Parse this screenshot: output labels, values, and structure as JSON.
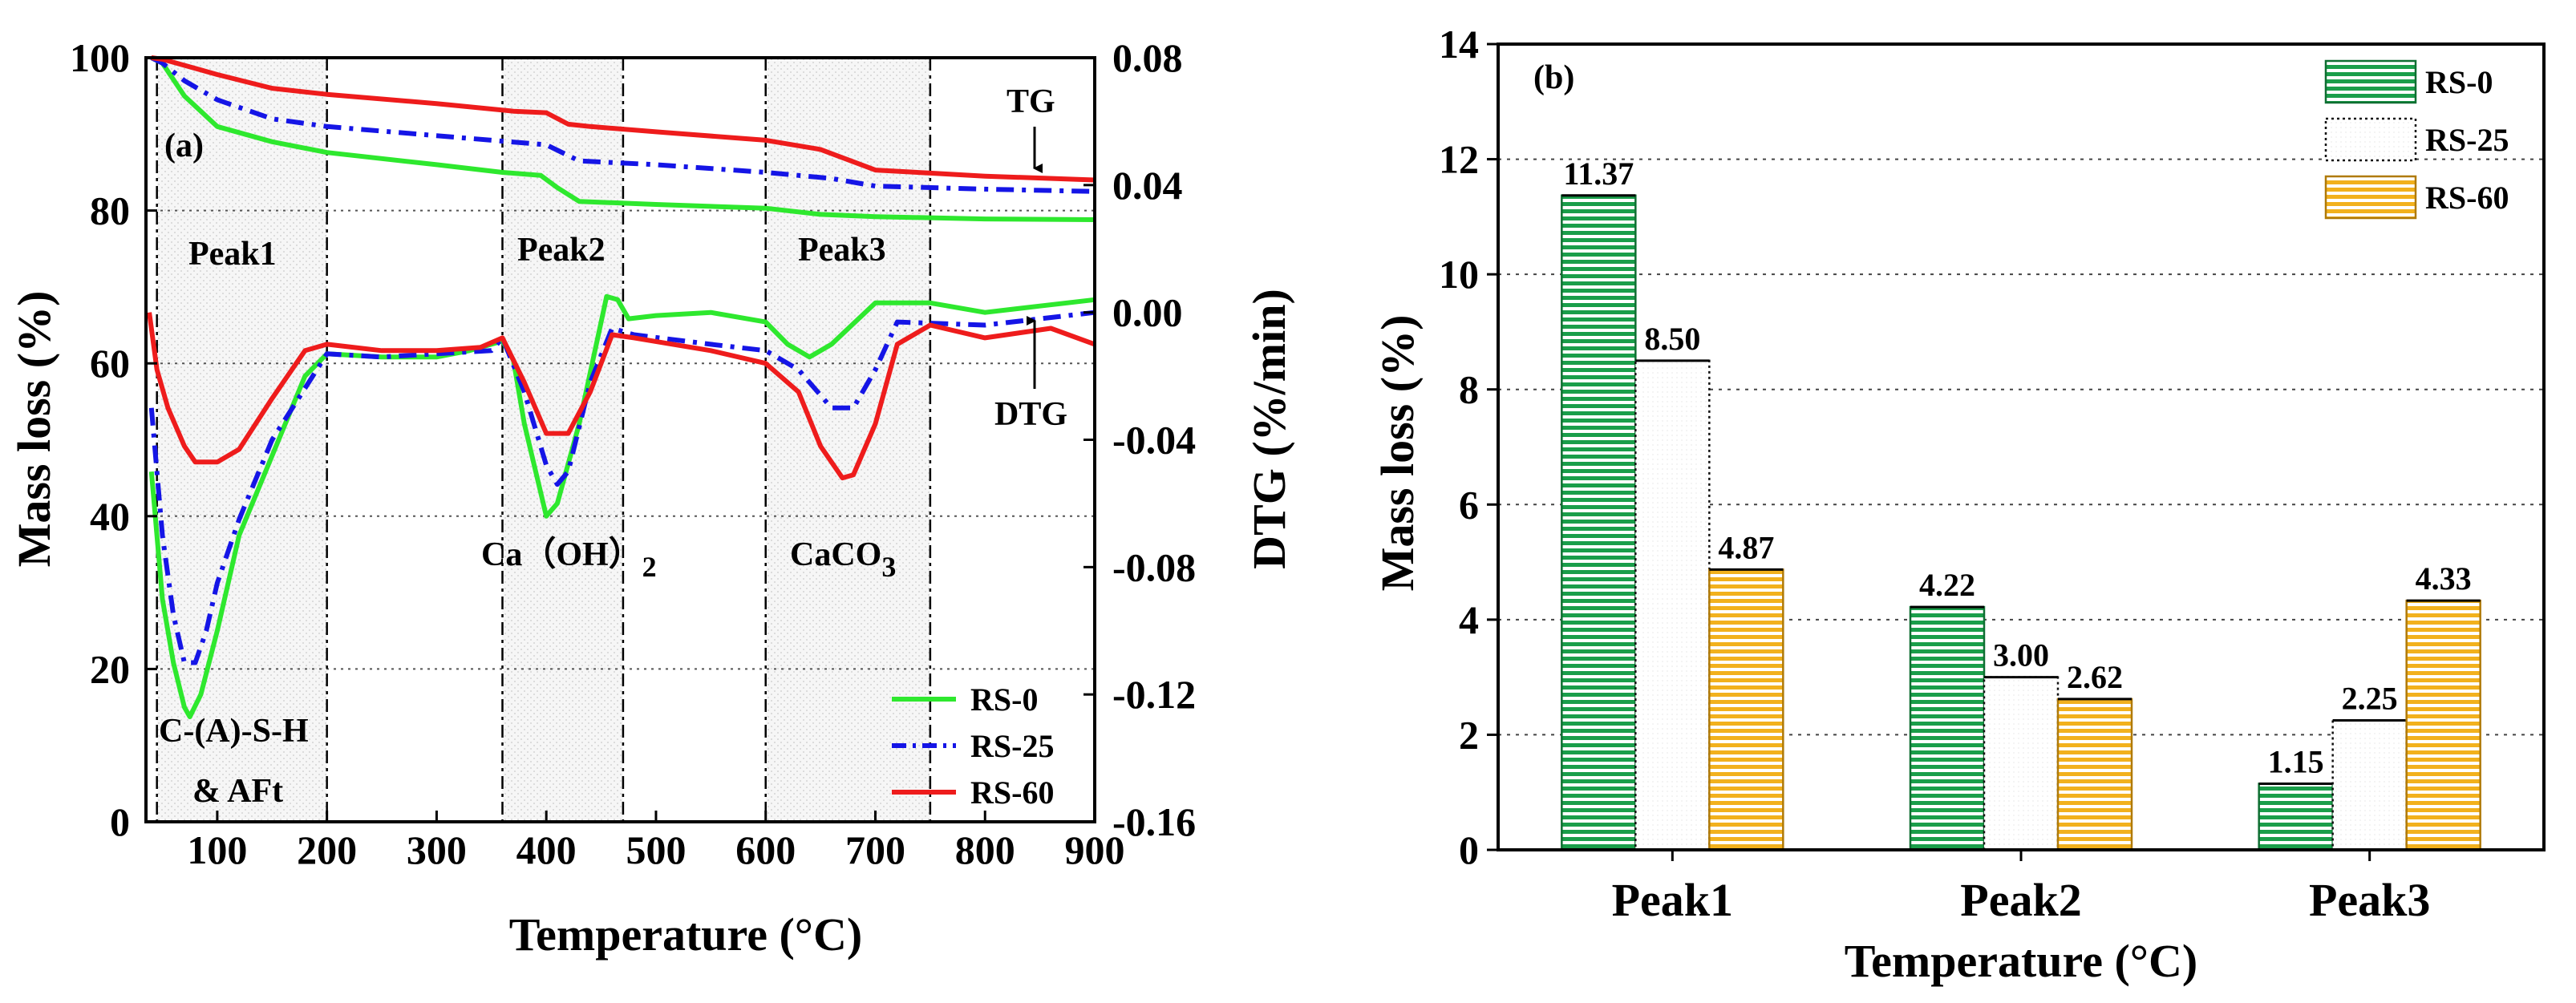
{
  "chart_data": [
    {
      "type": "line",
      "panel_label": "(a)",
      "xlabel": "Temperature (°C)",
      "ylabel": "Mass loss (%)",
      "y2label": "DTG (%/min)",
      "xlim": [
        35,
        900
      ],
      "ylim": [
        0,
        100
      ],
      "y2lim": [
        -0.16,
        0.08
      ],
      "x_ticks": [
        100,
        200,
        300,
        400,
        500,
        600,
        700,
        800,
        900
      ],
      "y_ticks": [
        0,
        20,
        40,
        60,
        80,
        100
      ],
      "y2_ticks": [
        "0.08",
        "0.04",
        "0.00",
        "-0.04",
        "-0.08",
        "-0.12",
        "-0.16"
      ],
      "peak_boundaries": [
        45,
        200,
        360,
        470,
        600,
        750
      ],
      "annotations": {
        "tg": "TG",
        "dtg": "DTG",
        "peak1": "Peak1",
        "peak2": "Peak2",
        "peak3": "Peak3",
        "csh": "C-(A)-S-H",
        "aft": "& AFt",
        "caoh_main": "Ca（OH）",
        "caoh_sub": "2",
        "caco_main": "CaCO",
        "caco_sub": "3"
      },
      "legend": [
        "RS-0",
        "RS-25",
        "RS-60"
      ],
      "colors": {
        "RS-0": "#2ee82e",
        "RS-25": "#1515e6",
        "RS-60": "#ee1c1c"
      },
      "tg_series": [
        {
          "name": "RS-0",
          "x": [
            40,
            50,
            70,
            100,
            150,
            200,
            300,
            360,
            395,
            410,
            430,
            500,
            600,
            650,
            700,
            800,
            900
          ],
          "y": [
            100,
            99.3,
            95,
            91,
            89,
            87.6,
            86,
            85,
            84.6,
            83,
            81.2,
            80.8,
            80.3,
            79.5,
            79.2,
            78.9,
            78.8
          ]
        },
        {
          "name": "RS-25",
          "x": [
            40,
            50,
            70,
            100,
            150,
            200,
            300,
            350,
            400,
            430,
            500,
            600,
            660,
            700,
            800,
            900
          ],
          "y": [
            100,
            99.3,
            97,
            94.5,
            92,
            91,
            89.8,
            89.2,
            88.6,
            86.5,
            86,
            85,
            84.2,
            83.2,
            82.8,
            82.5
          ]
        },
        {
          "name": "RS-60",
          "x": [
            40,
            50,
            70,
            100,
            150,
            200,
            300,
            370,
            400,
            420,
            440,
            500,
            600,
            650,
            700,
            750,
            800,
            900
          ],
          "y": [
            100,
            99.8,
            99,
            97.8,
            96,
            95.2,
            94,
            93,
            92.8,
            91.3,
            91,
            90.3,
            89.2,
            88,
            85.3,
            84.9,
            84.5,
            84
          ]
        }
      ],
      "dtg_series": [
        {
          "name": "RS-0",
          "x": [
            40,
            50,
            60,
            70,
            75,
            85,
            100,
            120,
            150,
            180,
            200,
            250,
            300,
            330,
            360,
            370,
            380,
            400,
            410,
            430,
            455,
            465,
            475,
            500,
            550,
            600,
            620,
            640,
            660,
            700,
            750,
            800,
            850,
            900
          ],
          "y": [
            -0.05,
            -0.09,
            -0.11,
            -0.124,
            -0.127,
            -0.12,
            -0.1,
            -0.07,
            -0.045,
            -0.02,
            -0.013,
            -0.014,
            -0.014,
            -0.012,
            -0.009,
            -0.015,
            -0.035,
            -0.064,
            -0.06,
            -0.035,
            0.005,
            0.004,
            -0.002,
            -0.001,
            0,
            -0.003,
            -0.01,
            -0.014,
            -0.01,
            0.003,
            0.003,
            0,
            0.002,
            0.004
          ]
        },
        {
          "name": "RS-25",
          "x": [
            40,
            50,
            60,
            70,
            80,
            90,
            100,
            120,
            150,
            200,
            250,
            300,
            350,
            360,
            380,
            400,
            410,
            420,
            440,
            460,
            480,
            550,
            600,
            630,
            660,
            680,
            700,
            720,
            800,
            900
          ],
          "y": [
            -0.03,
            -0.07,
            -0.095,
            -0.11,
            -0.11,
            -0.1,
            -0.085,
            -0.065,
            -0.04,
            -0.013,
            -0.014,
            -0.013,
            -0.012,
            -0.008,
            -0.025,
            -0.048,
            -0.054,
            -0.05,
            -0.022,
            -0.005,
            -0.007,
            -0.01,
            -0.012,
            -0.018,
            -0.03,
            -0.03,
            -0.018,
            -0.003,
            -0.004,
            0
          ]
        },
        {
          "name": "RS-60",
          "x": [
            38,
            45,
            55,
            70,
            80,
            100,
            120,
            150,
            180,
            200,
            250,
            300,
            340,
            360,
            380,
            400,
            420,
            440,
            460,
            480,
            550,
            600,
            630,
            650,
            670,
            680,
            700,
            720,
            750,
            800,
            860,
            900
          ],
          "y": [
            0,
            -0.018,
            -0.03,
            -0.042,
            -0.047,
            -0.047,
            -0.043,
            -0.027,
            -0.012,
            -0.01,
            -0.012,
            -0.012,
            -0.011,
            -0.008,
            -0.022,
            -0.038,
            -0.038,
            -0.025,
            -0.007,
            -0.008,
            -0.012,
            -0.016,
            -0.025,
            -0.042,
            -0.052,
            -0.051,
            -0.035,
            -0.01,
            -0.004,
            -0.008,
            -0.005,
            -0.01
          ]
        }
      ]
    },
    {
      "type": "bar",
      "panel_label": "(b)",
      "xlabel": "Temperature (°C)",
      "ylabel": "Mass loss (%)",
      "ylim": [
        0,
        14
      ],
      "y_ticks": [
        0,
        2,
        4,
        6,
        8,
        10,
        12,
        14
      ],
      "categories": [
        "Peak1",
        "Peak2",
        "Peak3"
      ],
      "series": [
        {
          "name": "RS-0",
          "values": [
            11.37,
            4.22,
            1.15
          ],
          "labels": [
            "11.37",
            "4.22",
            "1.15"
          ]
        },
        {
          "name": "RS-25",
          "values": [
            8.5,
            3.0,
            2.25
          ],
          "labels": [
            "8.50",
            "3.00",
            "2.25"
          ]
        },
        {
          "name": "RS-60",
          "values": [
            4.87,
            2.62,
            4.33
          ],
          "labels": [
            "4.87",
            "2.62",
            "4.33"
          ]
        }
      ],
      "legend": [
        "RS-0",
        "RS-25",
        "RS-60"
      ],
      "legend_position": "top-right",
      "grid": true
    }
  ]
}
